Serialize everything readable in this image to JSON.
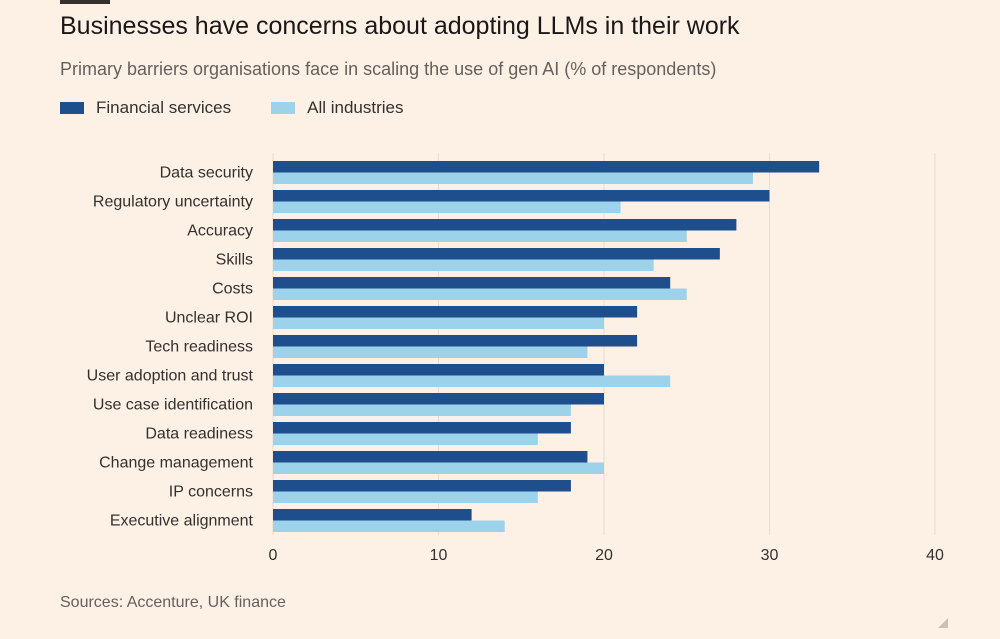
{
  "header": {
    "title": "Businesses have concerns about adopting LLMs in their work",
    "subtitle": "Primary barriers organisations face in scaling the use of gen AI (% of respondents)"
  },
  "footer": {
    "source": "Sources: Accenture, UK finance"
  },
  "colors": {
    "financial": "#1F4E8C",
    "all": "#9CD3EA",
    "grid": "#E8DDD3",
    "text": "#33302E",
    "background": "#FDF1E6"
  },
  "chart_data": {
    "type": "bar",
    "orientation": "horizontal",
    "title": "Businesses have concerns about adopting LLMs in their work",
    "subtitle": "Primary barriers organisations face in scaling the use of gen AI (% of respondents)",
    "categories": [
      "Data security",
      "Regulatory uncertainty",
      "Accuracy",
      "Skills",
      "Costs",
      "Unclear ROI",
      "Tech readiness",
      "User adoption and trust",
      "Use case identification",
      "Data readiness",
      "Change management",
      "IP concerns",
      "Executive alignment"
    ],
    "series": [
      {
        "name": "Financial services",
        "color": "#1F4E8C",
        "values": [
          33,
          30,
          28,
          27,
          24,
          22,
          22,
          20,
          20,
          18,
          19,
          18,
          12
        ]
      },
      {
        "name": "All industries",
        "color": "#9CD3EA",
        "values": [
          29,
          21,
          25,
          23,
          25,
          20,
          19,
          24,
          18,
          16,
          20,
          16,
          14
        ]
      }
    ],
    "xlim": [
      0,
      40
    ],
    "xticks": [
      0,
      10,
      20,
      30,
      40
    ],
    "grid": true,
    "legend": "top-left"
  }
}
